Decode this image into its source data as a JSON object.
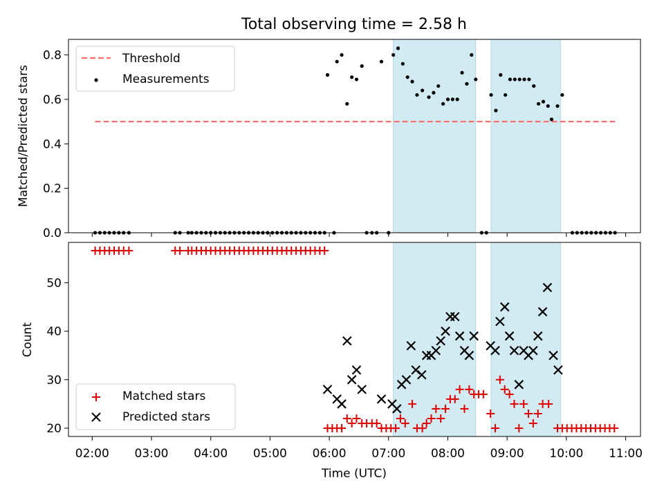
{
  "title": "Total observing time = 2.58 h",
  "colors": {
    "threshold": "#ff6b6b",
    "measurement": "#000000",
    "matched": "#e00000",
    "predicted": "#000000",
    "shade": "#add8e6"
  },
  "chart_data": [
    {
      "type": "scatter",
      "title": "Total observing time = 2.58 h",
      "ylabel": "Matched/Predicted stars",
      "xlim": [
        1.6,
        11.25
      ],
      "ylim": [
        0,
        0.87
      ],
      "yticks": [
        0.0,
        0.2,
        0.4,
        0.6,
        0.8
      ],
      "ytick_labels": [
        "0.0",
        "0.2",
        "0.4",
        "0.6",
        "0.8"
      ],
      "grid": false,
      "legend": {
        "position": "top-left",
        "entries": [
          "Threshold",
          "Measurements"
        ]
      },
      "shaded_spans": [
        [
          7.08,
          8.47
        ],
        [
          8.73,
          9.9
        ]
      ],
      "threshold": {
        "name": "Threshold",
        "y": 0.5,
        "x_range": [
          2.05,
          10.82
        ]
      },
      "series": [
        {
          "name": "Measurements",
          "points": [
            [
              2.05,
              0
            ],
            [
              2.13,
              0
            ],
            [
              2.21,
              0
            ],
            [
              2.29,
              0
            ],
            [
              2.37,
              0
            ],
            [
              2.45,
              0
            ],
            [
              2.53,
              0
            ],
            [
              2.62,
              0
            ],
            [
              3.4,
              0
            ],
            [
              3.48,
              0
            ],
            [
              3.62,
              0
            ],
            [
              3.68,
              0
            ],
            [
              3.76,
              0
            ],
            [
              3.84,
              0
            ],
            [
              3.92,
              0
            ],
            [
              4.0,
              0
            ],
            [
              4.08,
              0
            ],
            [
              4.16,
              0
            ],
            [
              4.24,
              0
            ],
            [
              4.32,
              0
            ],
            [
              4.4,
              0
            ],
            [
              4.48,
              0
            ],
            [
              4.56,
              0
            ],
            [
              4.64,
              0
            ],
            [
              4.72,
              0
            ],
            [
              4.8,
              0
            ],
            [
              4.88,
              0
            ],
            [
              4.96,
              0
            ],
            [
              5.04,
              0
            ],
            [
              5.12,
              0
            ],
            [
              5.2,
              0
            ],
            [
              5.28,
              0
            ],
            [
              5.36,
              0
            ],
            [
              5.44,
              0
            ],
            [
              5.52,
              0
            ],
            [
              5.6,
              0
            ],
            [
              5.68,
              0
            ],
            [
              5.76,
              0
            ],
            [
              5.84,
              0
            ],
            [
              5.92,
              0
            ],
            [
              5.97,
              0.71
            ],
            [
              6.08,
              0
            ],
            [
              6.13,
              0.77
            ],
            [
              6.21,
              0.8
            ],
            [
              6.3,
              0.58
            ],
            [
              6.38,
              0.7
            ],
            [
              6.46,
              0.69
            ],
            [
              6.55,
              0.75
            ],
            [
              6.63,
              0
            ],
            [
              6.72,
              0
            ],
            [
              6.8,
              0
            ],
            [
              6.88,
              0.77
            ],
            [
              7.0,
              0
            ],
            [
              7.08,
              0.8
            ],
            [
              7.16,
              0.83
            ],
            [
              7.24,
              0.76
            ],
            [
              7.32,
              0.7
            ],
            [
              7.4,
              0.68
            ],
            [
              7.48,
              0.62
            ],
            [
              7.57,
              0.64
            ],
            [
              7.68,
              0.61
            ],
            [
              7.76,
              0.63
            ],
            [
              7.84,
              0.66
            ],
            [
              7.92,
              0.58
            ],
            [
              8.0,
              0.6
            ],
            [
              8.08,
              0.6
            ],
            [
              8.16,
              0.6
            ],
            [
              8.24,
              0.72
            ],
            [
              8.32,
              0.67
            ],
            [
              8.4,
              0.8
            ],
            [
              8.47,
              0.69
            ],
            [
              8.57,
              0
            ],
            [
              8.65,
              0
            ],
            [
              8.73,
              0.62
            ],
            [
              8.81,
              0.55
            ],
            [
              8.89,
              0.71
            ],
            [
              8.97,
              0.62
            ],
            [
              9.05,
              0.69
            ],
            [
              9.13,
              0.69
            ],
            [
              9.21,
              0.69
            ],
            [
              9.29,
              0.69
            ],
            [
              9.37,
              0.69
            ],
            [
              9.45,
              0.66
            ],
            [
              9.53,
              0.58
            ],
            [
              9.61,
              0.59
            ],
            [
              9.69,
              0.57
            ],
            [
              9.75,
              0.51
            ],
            [
              9.85,
              0.57
            ],
            [
              9.93,
              0.62
            ],
            [
              10.1,
              0
            ],
            [
              10.18,
              0
            ],
            [
              10.26,
              0
            ],
            [
              10.34,
              0
            ],
            [
              10.42,
              0
            ],
            [
              10.5,
              0
            ],
            [
              10.58,
              0
            ],
            [
              10.66,
              0
            ],
            [
              10.74,
              0
            ],
            [
              10.82,
              0
            ]
          ]
        }
      ]
    },
    {
      "type": "scatter",
      "xlabel": "Time (UTC)",
      "ylabel": "Count",
      "xlim": [
        1.6,
        11.25
      ],
      "ylim": [
        18.3,
        58.3
      ],
      "xticks": [
        2,
        3,
        4,
        5,
        6,
        7,
        8,
        9,
        10,
        11
      ],
      "xtick_labels": [
        "02:00",
        "03:00",
        "04:00",
        "05:00",
        "06:00",
        "07:00",
        "08:00",
        "09:00",
        "10:00",
        "11:00"
      ],
      "yticks": [
        20,
        30,
        40,
        50
      ],
      "ytick_labels": [
        "20",
        "30",
        "40",
        "50"
      ],
      "grid": false,
      "legend": {
        "position": "bottom-left",
        "entries": [
          "Matched stars",
          "Predicted stars"
        ]
      },
      "shaded_spans": [
        [
          7.08,
          8.47
        ],
        [
          8.73,
          9.9
        ]
      ],
      "series": [
        {
          "name": "Matched stars",
          "marker": "+",
          "points": [
            [
              2.05,
              56.6
            ],
            [
              2.13,
              56.6
            ],
            [
              2.21,
              56.6
            ],
            [
              2.29,
              56.6
            ],
            [
              2.37,
              56.6
            ],
            [
              2.45,
              56.6
            ],
            [
              2.53,
              56.6
            ],
            [
              2.62,
              56.6
            ],
            [
              3.4,
              56.6
            ],
            [
              3.48,
              56.6
            ],
            [
              3.62,
              56.6
            ],
            [
              3.68,
              56.6
            ],
            [
              3.76,
              56.6
            ],
            [
              3.84,
              56.6
            ],
            [
              3.92,
              56.6
            ],
            [
              4.0,
              56.6
            ],
            [
              4.08,
              56.6
            ],
            [
              4.16,
              56.6
            ],
            [
              4.24,
              56.6
            ],
            [
              4.32,
              56.6
            ],
            [
              4.4,
              56.6
            ],
            [
              4.48,
              56.6
            ],
            [
              4.56,
              56.6
            ],
            [
              4.64,
              56.6
            ],
            [
              4.72,
              56.6
            ],
            [
              4.8,
              56.6
            ],
            [
              4.88,
              56.6
            ],
            [
              4.96,
              56.6
            ],
            [
              5.04,
              56.6
            ],
            [
              5.12,
              56.6
            ],
            [
              5.2,
              56.6
            ],
            [
              5.28,
              56.6
            ],
            [
              5.36,
              56.6
            ],
            [
              5.44,
              56.6
            ],
            [
              5.52,
              56.6
            ],
            [
              5.6,
              56.6
            ],
            [
              5.68,
              56.6
            ],
            [
              5.76,
              56.6
            ],
            [
              5.84,
              56.6
            ],
            [
              5.92,
              56.6
            ],
            [
              5.97,
              20
            ],
            [
              6.05,
              20
            ],
            [
              6.13,
              20
            ],
            [
              6.21,
              20
            ],
            [
              6.3,
              22
            ],
            [
              6.38,
              21
            ],
            [
              6.46,
              22
            ],
            [
              6.55,
              21
            ],
            [
              6.63,
              21
            ],
            [
              6.72,
              21
            ],
            [
              6.8,
              21
            ],
            [
              6.88,
              20
            ],
            [
              6.96,
              20
            ],
            [
              7.04,
              20
            ],
            [
              7.12,
              20
            ],
            [
              7.2,
              22
            ],
            [
              7.28,
              21
            ],
            [
              7.4,
              25
            ],
            [
              7.48,
              20
            ],
            [
              7.57,
              20
            ],
            [
              7.64,
              21
            ],
            [
              7.72,
              22
            ],
            [
              7.8,
              24
            ],
            [
              7.88,
              22
            ],
            [
              7.96,
              24
            ],
            [
              8.04,
              26
            ],
            [
              8.12,
              26
            ],
            [
              8.2,
              28
            ],
            [
              8.28,
              24
            ],
            [
              8.36,
              28
            ],
            [
              8.44,
              27
            ],
            [
              8.52,
              27
            ],
            [
              8.6,
              27
            ],
            [
              8.72,
              23
            ],
            [
              8.8,
              20
            ],
            [
              8.88,
              30
            ],
            [
              8.96,
              28
            ],
            [
              9.04,
              27
            ],
            [
              9.12,
              25
            ],
            [
              9.2,
              20
            ],
            [
              9.28,
              25
            ],
            [
              9.36,
              23
            ],
            [
              9.44,
              21
            ],
            [
              9.52,
              23
            ],
            [
              9.6,
              25
            ],
            [
              9.7,
              25
            ],
            [
              9.85,
              20
            ],
            [
              9.93,
              20
            ],
            [
              10.01,
              20
            ],
            [
              10.09,
              20
            ],
            [
              10.17,
              20
            ],
            [
              10.25,
              20
            ],
            [
              10.33,
              20
            ],
            [
              10.41,
              20
            ],
            [
              10.49,
              20
            ],
            [
              10.57,
              20
            ],
            [
              10.65,
              20
            ],
            [
              10.73,
              20
            ],
            [
              10.81,
              20
            ]
          ]
        },
        {
          "name": "Predicted stars",
          "marker": "x",
          "points": [
            [
              5.97,
              28
            ],
            [
              6.13,
              26
            ],
            [
              6.21,
              25
            ],
            [
              6.3,
              38
            ],
            [
              6.38,
              30
            ],
            [
              6.46,
              32
            ],
            [
              6.55,
              28
            ],
            [
              6.88,
              26
            ],
            [
              7.06,
              25
            ],
            [
              7.14,
              24
            ],
            [
              7.22,
              29
            ],
            [
              7.3,
              30
            ],
            [
              7.38,
              37
            ],
            [
              7.46,
              32
            ],
            [
              7.56,
              31
            ],
            [
              7.64,
              35
            ],
            [
              7.72,
              35
            ],
            [
              7.8,
              36
            ],
            [
              7.88,
              38
            ],
            [
              7.96,
              40
            ],
            [
              8.04,
              43
            ],
            [
              8.12,
              43
            ],
            [
              8.2,
              39
            ],
            [
              8.28,
              36
            ],
            [
              8.36,
              35
            ],
            [
              8.44,
              39
            ],
            [
              8.72,
              37
            ],
            [
              8.8,
              36
            ],
            [
              8.88,
              42
            ],
            [
              8.96,
              45
            ],
            [
              9.04,
              39
            ],
            [
              9.12,
              36
            ],
            [
              9.2,
              29
            ],
            [
              9.28,
              36
            ],
            [
              9.36,
              35
            ],
            [
              9.44,
              36
            ],
            [
              9.52,
              39
            ],
            [
              9.6,
              44
            ],
            [
              9.68,
              49
            ],
            [
              9.78,
              35
            ],
            [
              9.86,
              32
            ]
          ]
        }
      ]
    }
  ]
}
